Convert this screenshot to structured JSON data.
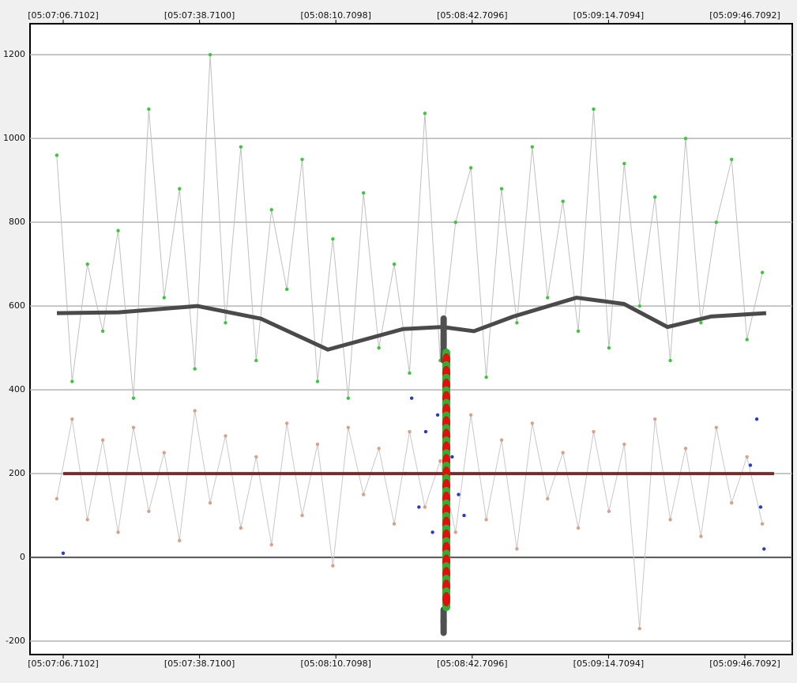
{
  "chart_data": {
    "type": "line",
    "xlim": [
      18418.92,
      18597.83
    ],
    "ylim": [
      -232,
      1274
    ],
    "xticks": [
      {
        "value": 18426.7102,
        "label": "[05:07:06.7102]"
      },
      {
        "value": 18458.71,
        "label": "[05:07:38.7100]"
      },
      {
        "value": 18490.7098,
        "label": "[05:08:10.7098]"
      },
      {
        "value": 18522.7096,
        "label": "[05:08:42.7096]"
      },
      {
        "value": 18554.7094,
        "label": "[05:09:14.7094]"
      },
      {
        "value": 18586.7092,
        "label": "[05:09:46.7092]"
      }
    ],
    "yticks": [
      -200,
      0,
      200,
      400,
      600,
      800,
      1000,
      1200
    ],
    "grid": true,
    "series": [
      {
        "style": "line-points",
        "color": "#c0c0c0",
        "marker_color": "#3cc83c",
        "x": [
          18425.2,
          18428.8,
          18432.4,
          18436.0,
          18439.6,
          18443.2,
          18446.8,
          18450.4,
          18454.0,
          18457.6,
          18461.2,
          18464.8,
          18468.4,
          18472.0,
          18475.6,
          18479.2,
          18482.8,
          18486.4,
          18490.0,
          18493.6,
          18497.2,
          18500.8,
          18504.4,
          18508.0,
          18511.6,
          18515.2,
          18518.8,
          18522.4,
          18526.0,
          18529.6,
          18533.2,
          18536.8,
          18540.4,
          18544.0,
          18547.6,
          18551.2,
          18554.8,
          18558.4,
          18562.0,
          18565.6,
          18569.2,
          18572.8,
          18576.4,
          18580.0,
          18583.6,
          18587.2,
          18590.8
        ],
        "values": [
          960,
          420,
          700,
          540,
          780,
          380,
          1070,
          620,
          880,
          450,
          1200,
          560,
          980,
          470,
          830,
          640,
          950,
          420,
          760,
          380,
          870,
          500,
          700,
          440,
          1060,
          470,
          800,
          930,
          430,
          880,
          560,
          980,
          620,
          850,
          540,
          1070,
          500,
          940,
          600,
          860,
          470,
          1000,
          560,
          800,
          950,
          520,
          680
        ]
      },
      {
        "style": "line-points",
        "color": "#c8c8c8",
        "marker_color": "#d9a08c",
        "x": [
          18425.2,
          18428.8,
          18432.4,
          18436.0,
          18439.6,
          18443.2,
          18446.8,
          18450.4,
          18454.0,
          18457.6,
          18461.2,
          18464.8,
          18468.4,
          18472.0,
          18475.6,
          18479.2,
          18482.8,
          18486.4,
          18490.0,
          18493.6,
          18497.2,
          18500.8,
          18504.4,
          18508.0,
          18511.6,
          18515.2,
          18518.8,
          18522.4,
          18526.0,
          18529.6,
          18533.2,
          18536.8,
          18540.4,
          18544.0,
          18547.6,
          18551.2,
          18554.8,
          18558.4,
          18562.0,
          18565.6,
          18569.2,
          18572.8,
          18576.4,
          18580.0,
          18583.6,
          18587.2,
          18590.8
        ],
        "values": [
          140,
          330,
          90,
          280,
          60,
          310,
          110,
          250,
          40,
          350,
          130,
          290,
          70,
          240,
          30,
          320,
          100,
          270,
          -20,
          310,
          150,
          260,
          80,
          300,
          120,
          230,
          60,
          340,
          90,
          280,
          20,
          320,
          140,
          250,
          70,
          300,
          110,
          270,
          -170,
          330,
          90,
          260,
          50,
          310,
          130,
          240,
          80
        ]
      },
      {
        "style": "points",
        "marker_color": "#2a3cc8",
        "x": [
          18426.7,
          18507.0,
          18508.5,
          18510.2,
          18511.8,
          18513.4,
          18514.6,
          18518.0,
          18519.5,
          18520.8,
          18588.0,
          18589.5,
          18590.4,
          18591.2
        ],
        "values": [
          10,
          200,
          380,
          120,
          300,
          60,
          340,
          240,
          150,
          100,
          220,
          330,
          120,
          20
        ]
      },
      {
        "style": "line",
        "color": "#4a4a4a",
        "line_width": 5,
        "x": [
          18425.23,
          18439.69,
          18458.23,
          18473.06,
          18488.82,
          18506.43,
          18515.7,
          18523.11,
          18532.38,
          18547.21,
          18558.33,
          18568.53,
          18578.73,
          18591.7
        ],
        "values": [
          583,
          585,
          600,
          570,
          496,
          545,
          550,
          540,
          575,
          620,
          605,
          550,
          575,
          583
        ]
      },
      {
        "style": "line",
        "color": "#7a2a2a",
        "line_width": 4,
        "x": [
          18426.7,
          18593.56
        ],
        "values": [
          200,
          200
        ]
      },
      {
        "style": "dashes",
        "marker_color": "#505050",
        "x": [
          18516.0,
          18516.0,
          18516.0,
          18516.0,
          18516.0
        ],
        "values": [
          555,
          520,
          485,
          -140,
          -165
        ]
      },
      {
        "style": "beads",
        "marker_color": "#e01010",
        "alt_color": "#30b030",
        "x": [
          18516.63,
          18516.63,
          18516.63,
          18516.63,
          18516.63,
          18516.63,
          18516.63,
          18516.63,
          18516.63,
          18516.63,
          18516.63,
          18516.63,
          18516.63,
          18516.63,
          18516.63,
          18516.63,
          18516.63,
          18516.63,
          18516.63,
          18516.63
        ],
        "values": [
          470,
          440,
          410,
          380,
          350,
          320,
          290,
          260,
          230,
          200,
          170,
          140,
          110,
          80,
          50,
          20,
          -10,
          -40,
          -70,
          -100
        ]
      }
    ]
  }
}
